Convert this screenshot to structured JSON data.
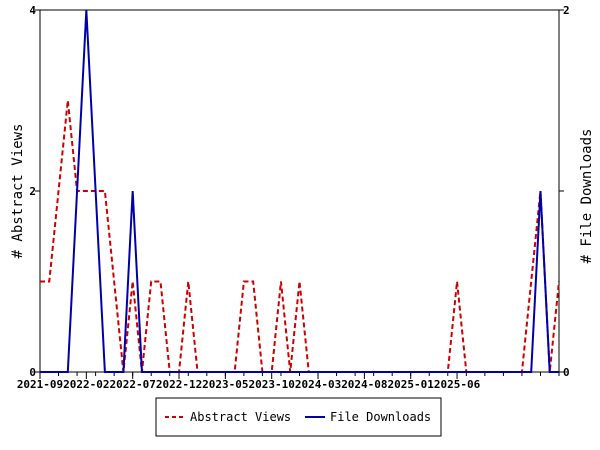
{
  "chart_data": {
    "type": "line",
    "x_tick_labels": [
      "2021-09",
      "2022-02",
      "2022-07",
      "2022-12",
      "2023-05",
      "2023-10",
      "2024-03",
      "2024-08",
      "2025-01",
      "2025-06"
    ],
    "ylabel_left": "# Abstract Views",
    "ylabel_right": "# File Downloads",
    "ylim_left": [
      0,
      4
    ],
    "ylim_right": [
      0,
      2
    ],
    "yticks_left": [
      "0",
      "2",
      "4"
    ],
    "yticks_right": [
      "0",
      "1",
      "2"
    ],
    "legend_position": "bottom",
    "grid": false,
    "series": [
      {
        "name": "Abstract Views",
        "axis": "left",
        "color": "#cc0000",
        "style": "dashed",
        "values": [
          1,
          1,
          2,
          3,
          2,
          2,
          2,
          2,
          1,
          0,
          1,
          0,
          1,
          1,
          0,
          0,
          1,
          0,
          0,
          0,
          0,
          0,
          1,
          1,
          0,
          0,
          1,
          0,
          1,
          0,
          0,
          0,
          0,
          0,
          0,
          0,
          0,
          0,
          0,
          0,
          0,
          0,
          0,
          0,
          0,
          1,
          0,
          0,
          0,
          0,
          0,
          0,
          0,
          1,
          2,
          0,
          1
        ]
      },
      {
        "name": "File Downloads",
        "axis": "right",
        "color": "#0000aa",
        "style": "solid",
        "values": [
          0,
          0,
          0,
          0,
          1,
          2,
          1,
          0,
          0,
          0,
          1,
          0,
          0,
          0,
          0,
          0,
          0,
          0,
          0,
          0,
          0,
          0,
          0,
          0,
          0,
          0,
          0,
          0,
          0,
          0,
          0,
          0,
          0,
          0,
          0,
          0,
          0,
          0,
          0,
          0,
          0,
          0,
          0,
          0,
          0,
          0,
          0,
          0,
          0,
          0,
          0,
          0,
          0,
          0,
          1,
          0,
          0
        ]
      }
    ]
  }
}
